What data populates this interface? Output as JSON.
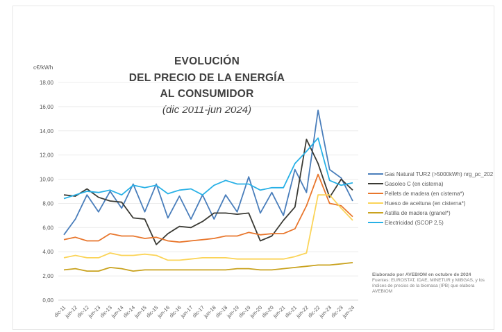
{
  "chart_data": {
    "type": "line",
    "title_lines": [
      "EVOLUCIÓN",
      "DEL PRECIO DE LA ENERGÍA",
      "AL CONSUMIDOR"
    ],
    "subtitle": "(dic 2011-jun 2024)",
    "ylabel": "c€/kWh",
    "ylim": [
      0,
      18
    ],
    "yticks": [
      "0,00",
      "2,00",
      "4,00",
      "6,00",
      "8,00",
      "10,00",
      "12,00",
      "14,00",
      "16,00",
      "18,00"
    ],
    "grid": true,
    "legend_position": "right",
    "categories": [
      "dic-11",
      "jun-12",
      "dic-12",
      "jun-13",
      "dic-13",
      "jun-14",
      "dic-14",
      "jun-15",
      "dic-15",
      "jun-16",
      "dic-16",
      "jun-17",
      "dic-17",
      "jun-18",
      "dic-18",
      "jun-19",
      "dic-19",
      "jun-20",
      "dic-20",
      "jun-21",
      "dic-21",
      "jun-22",
      "dic-22",
      "jun-23",
      "dic-23",
      "jun-24"
    ],
    "series": [
      {
        "name": "Gas Natural TUR2 (>5000kWh) nrg_pc_202",
        "color": "#4a7ebb",
        "values": [
          5.4,
          6.7,
          8.7,
          7.3,
          9.0,
          7.6,
          9.6,
          7.3,
          9.6,
          6.8,
          8.6,
          6.7,
          8.7,
          6.7,
          8.7,
          7.3,
          10.2,
          7.2,
          8.9,
          7.0,
          10.8,
          8.9,
          15.7,
          10.8,
          10.1,
          8.2
        ]
      },
      {
        "name": "Gasoleo C   (en cisterna)",
        "color": "#3a3a34",
        "values": [
          8.7,
          8.6,
          9.2,
          8.5,
          8.2,
          8.1,
          6.8,
          6.7,
          4.6,
          5.5,
          6.1,
          6.0,
          6.5,
          7.2,
          7.2,
          7.1,
          7.2,
          4.9,
          5.3,
          6.6,
          7.7,
          13.3,
          11.3,
          8.5,
          10.0,
          9.1
        ]
      },
      {
        "name": "Pellets de madera (en cisterna*)",
        "color": "#e8762c",
        "values": [
          5.0,
          5.2,
          4.9,
          4.9,
          5.5,
          5.3,
          5.3,
          5.1,
          5.2,
          4.9,
          4.8,
          4.9,
          5.0,
          5.1,
          5.3,
          5.3,
          5.6,
          5.4,
          5.5,
          5.5,
          5.9,
          7.8,
          10.4,
          8.0,
          7.8,
          6.9
        ]
      },
      {
        "name": "Hueso de aceituna (en cisterna*)",
        "color": "#fbd458",
        "values": [
          3.5,
          3.7,
          3.5,
          3.5,
          3.9,
          3.7,
          3.7,
          3.8,
          3.7,
          3.3,
          3.3,
          3.4,
          3.5,
          3.5,
          3.5,
          3.4,
          3.4,
          3.4,
          3.4,
          3.4,
          3.6,
          3.9,
          8.7,
          8.7,
          7.6,
          6.6
        ]
      },
      {
        "name": "Astilla de madera (granel*)",
        "color": "#c9a21e",
        "values": [
          2.5,
          2.6,
          2.4,
          2.4,
          2.7,
          2.6,
          2.4,
          2.5,
          2.5,
          2.5,
          2.5,
          2.5,
          2.5,
          2.5,
          2.5,
          2.6,
          2.6,
          2.5,
          2.5,
          2.6,
          2.7,
          2.8,
          2.9,
          2.9,
          3.0,
          3.1
        ]
      },
      {
        "name": "Electricidad (SCOP 2,5)",
        "color": "#27b0e6",
        "values": [
          8.4,
          8.7,
          9.0,
          8.9,
          9.1,
          8.7,
          9.5,
          9.3,
          9.5,
          8.8,
          9.1,
          9.2,
          8.7,
          9.5,
          9.9,
          9.6,
          9.6,
          9.1,
          9.3,
          9.3,
          11.3,
          12.3,
          13.4,
          9.9,
          9.5,
          9.7
        ]
      }
    ]
  },
  "source": {
    "credit": "Elaborado por AVEBIOM en octubre de 2024",
    "text": "Fuentes: EUROSTAT, IDAE, MINETUR y MIBGAS, y los índices de precios de la biomasa (IPB) que elabora AVEBIOM"
  }
}
